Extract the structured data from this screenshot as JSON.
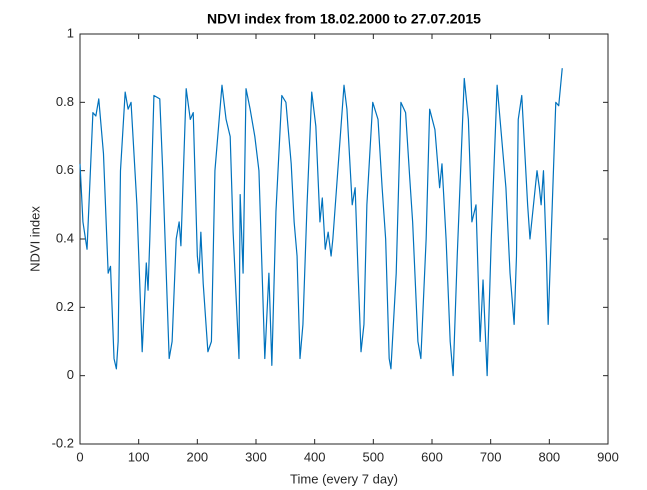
{
  "chart_data": {
    "type": "line",
    "title": "NDVI index from 18.02.2000 to 27.07.2015",
    "x_label": "Time (every 7 day)",
    "y_label": "NDVI index",
    "xlim": [
      0,
      900
    ],
    "ylim": [
      -0.2,
      1
    ],
    "xticks": [
      0,
      100,
      200,
      300,
      400,
      500,
      600,
      700,
      800,
      900
    ],
    "yticks": [
      -0.2,
      0,
      0.2,
      0.4,
      0.6,
      0.8,
      1
    ],
    "series": [
      {
        "name": "NDVI index",
        "color": "#0072bd",
        "x": [
          0,
          5,
          12,
          22,
          27,
          32,
          40,
          48,
          52,
          58,
          62,
          65,
          69,
          77,
          82,
          87,
          97,
          106,
          113,
          116,
          119,
          126,
          136,
          141,
          152,
          157,
          164,
          169,
          172,
          181,
          188,
          193,
          200,
          203,
          206,
          210,
          218,
          224,
          230,
          242,
          249,
          256,
          261,
          271,
          273,
          278,
          283,
          290,
          298,
          305,
          315,
          322,
          327,
          334,
          344,
          351,
          360,
          365,
          370,
          375,
          380,
          387,
          395,
          402,
          409,
          413,
          418,
          423,
          428,
          431,
          450,
          455,
          464,
          469,
          474,
          479,
          484,
          489,
          499,
          508,
          515,
          521,
          527,
          530,
          539,
          547,
          555,
          562,
          567,
          576,
          581,
          590,
          596,
          605,
          613,
          617,
          624,
          631,
          636,
          643,
          655,
          662,
          668,
          675,
          682,
          687,
          694,
          701,
          711,
          716,
          726,
          733,
          740,
          744,
          747,
          753,
          763,
          767,
          779,
          783,
          786,
          790,
          795,
          798,
          803,
          811,
          816,
          822
        ],
        "values": [
          0.62,
          0.45,
          0.37,
          0.77,
          0.76,
          0.81,
          0.65,
          0.3,
          0.32,
          0.05,
          0.02,
          0.1,
          0.6,
          0.83,
          0.78,
          0.8,
          0.5,
          0.07,
          0.33,
          0.25,
          0.4,
          0.82,
          0.81,
          0.6,
          0.05,
          0.1,
          0.4,
          0.45,
          0.38,
          0.84,
          0.75,
          0.77,
          0.35,
          0.3,
          0.42,
          0.27,
          0.07,
          0.1,
          0.6,
          0.85,
          0.75,
          0.7,
          0.42,
          0.05,
          0.53,
          0.3,
          0.84,
          0.78,
          0.7,
          0.6,
          0.05,
          0.3,
          0.03,
          0.48,
          0.82,
          0.8,
          0.62,
          0.45,
          0.35,
          0.05,
          0.15,
          0.5,
          0.83,
          0.73,
          0.45,
          0.52,
          0.37,
          0.42,
          0.35,
          0.4,
          0.85,
          0.78,
          0.5,
          0.55,
          0.3,
          0.07,
          0.15,
          0.5,
          0.8,
          0.75,
          0.55,
          0.4,
          0.05,
          0.02,
          0.3,
          0.8,
          0.77,
          0.58,
          0.45,
          0.1,
          0.05,
          0.4,
          0.78,
          0.72,
          0.55,
          0.62,
          0.4,
          0.1,
          0.0,
          0.35,
          0.87,
          0.75,
          0.45,
          0.5,
          0.1,
          0.28,
          0.0,
          0.4,
          0.85,
          0.75,
          0.55,
          0.3,
          0.15,
          0.35,
          0.75,
          0.82,
          0.5,
          0.4,
          0.6,
          0.55,
          0.5,
          0.6,
          0.35,
          0.15,
          0.4,
          0.8,
          0.79,
          0.9
        ]
      }
    ]
  }
}
